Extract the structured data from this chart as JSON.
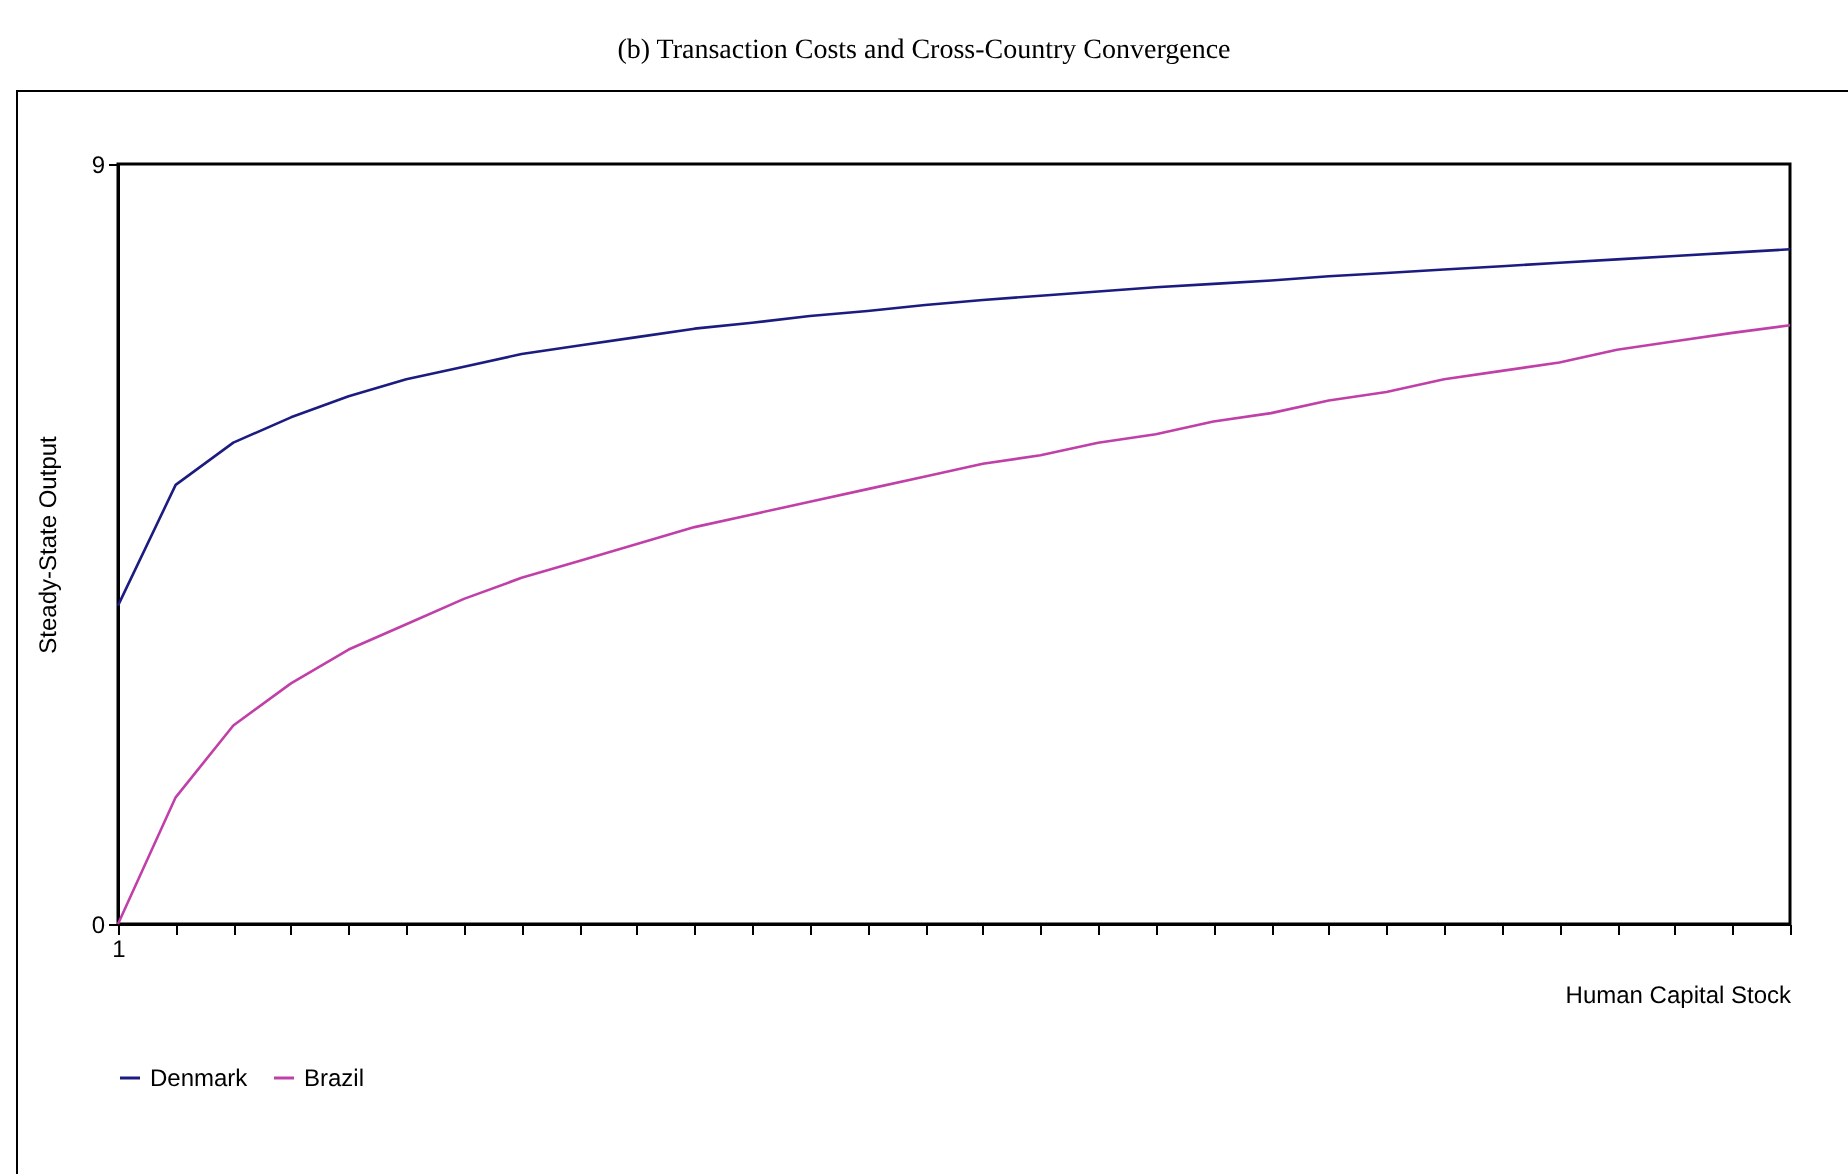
{
  "chart_data": {
    "type": "line",
    "title": "(b) Transaction Costs and Cross-Country Convergence",
    "xlabel": "Human Capital Stock",
    "ylabel": "Steady-State Output",
    "categories": [
      "1",
      null,
      null,
      null,
      null,
      null,
      null,
      null,
      null,
      null,
      null,
      null,
      null,
      null,
      null,
      null,
      null,
      null,
      null,
      null,
      null,
      null,
      null,
      null,
      null,
      null,
      null,
      null,
      null,
      null
    ],
    "series": [
      {
        "name": "Denmark",
        "color": "#1c1c80",
        "values": [
          3.77,
          5.2,
          5.7,
          6.0,
          6.25,
          6.45,
          6.6,
          6.75,
          6.85,
          6.95,
          7.05,
          7.12,
          7.2,
          7.26,
          7.33,
          7.39,
          7.44,
          7.49,
          7.54,
          7.58,
          7.62,
          7.67,
          7.71,
          7.75,
          7.79,
          7.83,
          7.87,
          7.91,
          7.95,
          7.99
        ]
      },
      {
        "name": "Brazil",
        "color": "#c040a8",
        "values": [
          0,
          1.5,
          2.35,
          2.85,
          3.25,
          3.55,
          3.85,
          4.1,
          4.3,
          4.5,
          4.7,
          4.85,
          5.0,
          5.15,
          5.3,
          5.45,
          5.55,
          5.7,
          5.8,
          5.95,
          6.05,
          6.2,
          6.3,
          6.45,
          6.55,
          6.65,
          6.8,
          6.9,
          7.0,
          7.09
        ]
      }
    ],
    "ylim": [
      0,
      9
    ],
    "yticks": [
      0,
      9
    ],
    "grid": false,
    "legend": "bottom"
  }
}
